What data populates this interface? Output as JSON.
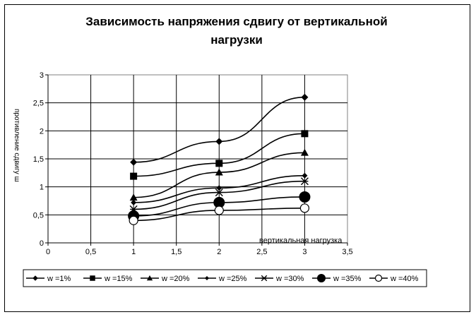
{
  "chart_data": {
    "type": "line",
    "title": "Зависимость напряжения сдвигу от вертикальной нагрузки",
    "xlabel": "вертикальная нагрузка",
    "ylabel": "противление сдвигу ш",
    "xlim": [
      0,
      3.5
    ],
    "ylim": [
      0,
      3
    ],
    "x_ticks": [
      "0",
      "0,5",
      "1",
      "1,5",
      "2",
      "2,5",
      "3",
      "3,5"
    ],
    "y_ticks": [
      "0",
      "0,5",
      "1",
      "1,5",
      "2",
      "2,5",
      "3"
    ],
    "grid": "major, both axes",
    "legend_position": "bottom",
    "x": [
      1,
      2,
      3
    ],
    "series": [
      {
        "name": "w =1%",
        "marker": "diamond",
        "values": [
          1.44,
          1.81,
          2.6
        ]
      },
      {
        "name": "w =15%",
        "marker": "square",
        "values": [
          1.19,
          1.42,
          1.95
        ]
      },
      {
        "name": "w =20%",
        "marker": "triangle",
        "values": [
          0.81,
          1.26,
          1.61
        ]
      },
      {
        "name": "w =25%",
        "marker": "small-diamond",
        "values": [
          0.72,
          0.98,
          1.2
        ]
      },
      {
        "name": "w =30%",
        "marker": "asterisk",
        "values": [
          0.6,
          0.9,
          1.1
        ]
      },
      {
        "name": "w =35%",
        "marker": "circle",
        "values": [
          0.48,
          0.72,
          0.82
        ]
      },
      {
        "name": "w =40%",
        "marker": "open-circle",
        "values": [
          0.4,
          0.58,
          0.62
        ]
      }
    ]
  }
}
